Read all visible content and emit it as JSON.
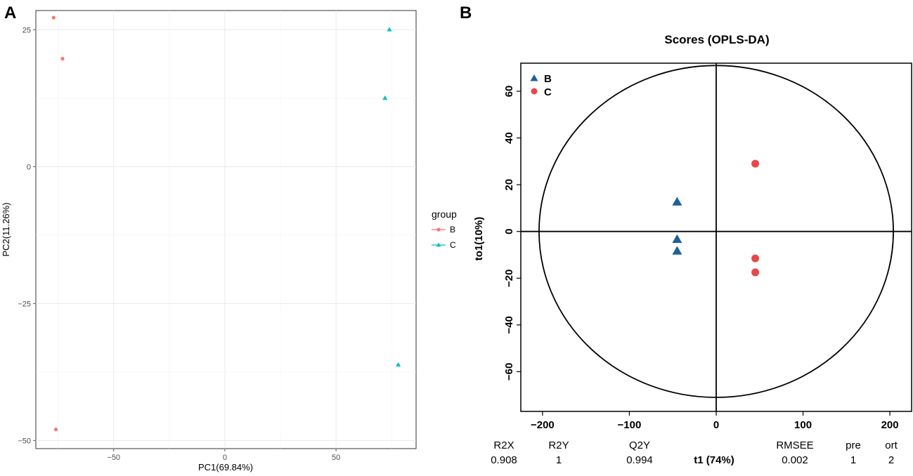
{
  "panels": {
    "a": {
      "label": "A"
    },
    "b": {
      "label": "B"
    }
  },
  "chart_data": [
    {
      "type": "scatter",
      "panel": "A",
      "title": "",
      "xlabel": "PC1(69.84%)",
      "ylabel": "PC2(11.26%)",
      "xlim": [
        -85,
        86
      ],
      "ylim": [
        -51.5,
        28.5
      ],
      "xticks": [
        -50,
        0,
        50
      ],
      "yticks": [
        25,
        0,
        -25,
        -50
      ],
      "xtick_labels": [
        "−50",
        "0",
        "50"
      ],
      "ytick_labels": [
        "25",
        "0",
        "−25",
        "−50"
      ],
      "grid": true,
      "legend": {
        "title": "group",
        "position": "right",
        "entries": [
          "B",
          "C"
        ]
      },
      "series": [
        {
          "name": "B",
          "color": "#F8766D",
          "marker": "circle",
          "points": [
            [
              -77,
              27.2
            ],
            [
              -73,
              19.7
            ],
            [
              -76,
              -48
            ]
          ]
        },
        {
          "name": "C",
          "color": "#00BFC4",
          "marker": "triangle",
          "points": [
            [
              74,
              25
            ],
            [
              72,
              12.5
            ],
            [
              78,
              -36.2
            ]
          ]
        }
      ]
    },
    {
      "type": "scatter",
      "panel": "B",
      "title": "Scores (OPLS-DA)",
      "xlabel": "t1 (74%)",
      "ylabel": "to1(10%)",
      "xlim": [
        -225,
        225
      ],
      "ylim": [
        -77,
        72
      ],
      "xticks": [
        -200,
        -100,
        0,
        100,
        200
      ],
      "yticks": [
        60,
        40,
        20,
        0,
        -20,
        -40,
        -60
      ],
      "xtick_labels": [
        "−200",
        "−100",
        "0",
        "100",
        "200"
      ],
      "ytick_labels": [
        "60",
        "40",
        "20",
        "0",
        "−20",
        "−40",
        "−60"
      ],
      "ellipse": {
        "rx": 204,
        "ry": 71
      },
      "grid": false,
      "legend": {
        "position": "top-left",
        "entries": [
          "B",
          "C"
        ]
      },
      "series": [
        {
          "name": "B",
          "color": "#1F5F9A",
          "marker": "triangle",
          "points": [
            [
              -45,
              12.5
            ],
            [
              -45,
              -3.5
            ],
            [
              -45,
              -8.5
            ]
          ]
        },
        {
          "name": "C",
          "color": "#E8474A",
          "marker": "circle",
          "points": [
            [
              45,
              29
            ],
            [
              45,
              -11.5
            ],
            [
              45,
              -17.5
            ]
          ]
        }
      ]
    }
  ],
  "stats": {
    "headers": [
      "R2X",
      "R2Y",
      "Q2Y",
      "RMSEE",
      "pre",
      "ort"
    ],
    "values": [
      "0.908",
      "1",
      "0.994",
      "0.002",
      "1",
      "2"
    ]
  }
}
